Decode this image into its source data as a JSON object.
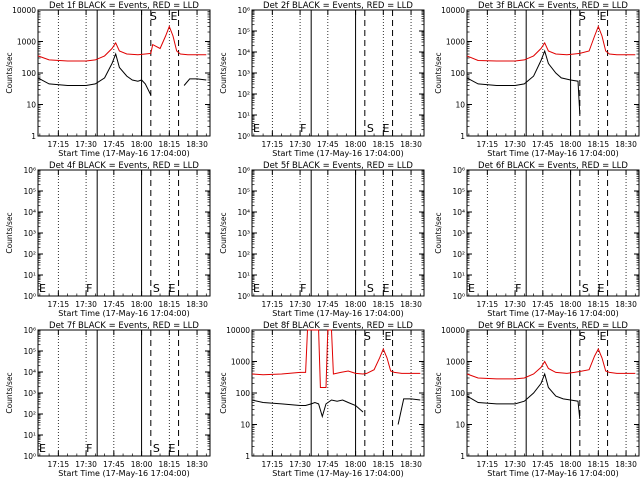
{
  "figure": {
    "xlabel": "Start Time (17-May-16 17:04:00)",
    "ylabel": "Counts/sec",
    "x_tick_labels": [
      "17:15",
      "17:30",
      "17:45",
      "18:00",
      "18:15",
      "18:30"
    ],
    "colors": {
      "events": "#000000",
      "lld": "#e00000"
    }
  },
  "chart_data": [
    {
      "type": "line",
      "title": "Det 1f BLACK = Events, RED = LLD",
      "yscale": "log",
      "ylim": [
        1,
        10000
      ],
      "y_tick_labels": [
        "1",
        "10",
        "100",
        "1000",
        "10000"
      ],
      "markers": [
        {
          "label": "S",
          "time": "18:05"
        },
        {
          "label": "E",
          "time": "18:20"
        }
      ],
      "series": [
        {
          "name": "BLACK = Events",
          "color": "#000000",
          "x": [
            "17:04",
            "17:10",
            "17:20",
            "17:30",
            "17:35",
            "17:40",
            "17:44",
            "17:46",
            "17:48",
            "17:52",
            "17:55",
            "17:58",
            "18:00",
            "18:02",
            "18:05"
          ],
          "values": [
            70,
            45,
            40,
            40,
            45,
            70,
            200,
            400,
            150,
            80,
            60,
            55,
            60,
            45,
            20
          ]
        },
        {
          "name": "BLACK = Events",
          "color": "#000000",
          "x": [
            "18:23",
            "18:26",
            "18:30",
            "18:35"
          ],
          "values": [
            40,
            65,
            65,
            60
          ]
        },
        {
          "name": "RED = LLD",
          "color": "#e00000",
          "x": [
            "17:04",
            "17:10",
            "17:20",
            "17:30",
            "17:35",
            "17:40",
            "17:44",
            "17:46",
            "17:48",
            "17:52",
            "17:58",
            "18:02",
            "18:05",
            "18:06",
            "18:10",
            "18:13",
            "18:15",
            "18:17",
            "18:19",
            "18:21",
            "18:25",
            "18:30",
            "18:35"
          ],
          "values": [
            350,
            260,
            240,
            240,
            260,
            350,
            600,
            900,
            500,
            400,
            380,
            400,
            420,
            800,
            600,
            1500,
            3000,
            1500,
            500,
            400,
            380,
            380,
            380
          ]
        }
      ]
    },
    {
      "type": "line",
      "title": "Det 2f BLACK = Events, RED = LLD",
      "yscale": "log",
      "ylim": [
        1,
        1000000
      ],
      "y_tick_labels": [
        "10⁰",
        "10¹",
        "10²",
        "10³",
        "10⁴",
        "10⁵",
        "10⁶"
      ],
      "markers": [
        {
          "label": "E",
          "time": "17:04"
        },
        {
          "label": "F",
          "time": "17:36"
        },
        {
          "label": "S",
          "time": "18:05"
        },
        {
          "label": "E",
          "time": "18:20"
        }
      ],
      "series": []
    },
    {
      "type": "line",
      "title": "Det 3f BLACK = Events, RED = LLD",
      "yscale": "log",
      "ylim": [
        1,
        10000
      ],
      "y_tick_labels": [
        "1",
        "10",
        "100",
        "1000",
        "10000"
      ],
      "markers": [
        {
          "label": "S",
          "time": "18:05"
        },
        {
          "label": "E",
          "time": "18:20"
        }
      ],
      "series": [
        {
          "name": "BLACK = Events",
          "color": "#000000",
          "x": [
            "17:04",
            "17:10",
            "17:20",
            "17:30",
            "17:35",
            "17:40",
            "17:44",
            "17:46",
            "17:48",
            "17:52",
            "17:55",
            "18:00",
            "18:04",
            "18:05"
          ],
          "values": [
            70,
            45,
            40,
            40,
            45,
            80,
            250,
            500,
            200,
            100,
            70,
            60,
            55,
            5
          ]
        },
        {
          "name": "RED = LLD",
          "color": "#e00000",
          "x": [
            "17:04",
            "17:10",
            "17:20",
            "17:30",
            "17:35",
            "17:40",
            "17:44",
            "17:46",
            "17:48",
            "17:52",
            "17:58",
            "18:02",
            "18:05",
            "18:10",
            "18:13",
            "18:15",
            "18:17",
            "18:19",
            "18:21",
            "18:25",
            "18:30",
            "18:35"
          ],
          "values": [
            350,
            250,
            240,
            240,
            260,
            350,
            600,
            900,
            500,
            400,
            380,
            400,
            420,
            500,
            1500,
            3000,
            1500,
            500,
            400,
            380,
            380,
            380
          ]
        }
      ]
    },
    {
      "type": "line",
      "title": "Det 4f BLACK = Events, RED = LLD",
      "yscale": "log",
      "ylim": [
        1,
        1000000
      ],
      "y_tick_labels": [
        "10⁰",
        "10¹",
        "10²",
        "10³",
        "10⁴",
        "10⁵",
        "10⁶"
      ],
      "markers": [
        {
          "label": "E",
          "time": "17:04"
        },
        {
          "label": "F",
          "time": "17:36"
        },
        {
          "label": "S",
          "time": "18:05"
        },
        {
          "label": "E",
          "time": "18:20"
        }
      ],
      "series": []
    },
    {
      "type": "line",
      "title": "Det 5f BLACK = Events, RED = LLD",
      "yscale": "log",
      "ylim": [
        1,
        1000000
      ],
      "y_tick_labels": [
        "10⁰",
        "10¹",
        "10²",
        "10³",
        "10⁴",
        "10⁵",
        "10⁶"
      ],
      "markers": [
        {
          "label": "E",
          "time": "17:04"
        },
        {
          "label": "F",
          "time": "17:36"
        },
        {
          "label": "S",
          "time": "18:05"
        },
        {
          "label": "E",
          "time": "18:20"
        }
      ],
      "series": []
    },
    {
      "type": "line",
      "title": "Det 6f BLACK = Events, RED = LLD",
      "yscale": "log",
      "ylim": [
        1,
        1000000
      ],
      "y_tick_labels": [
        "10⁰",
        "10¹",
        "10²",
        "10³",
        "10⁴",
        "10⁵",
        "10⁶"
      ],
      "markers": [
        {
          "label": "E",
          "time": "17:04"
        },
        {
          "label": "F",
          "time": "17:36"
        },
        {
          "label": "S",
          "time": "18:05"
        },
        {
          "label": "E",
          "time": "18:20"
        }
      ],
      "series": []
    },
    {
      "type": "line",
      "title": "Det 7f BLACK = Events, RED = LLD",
      "yscale": "log",
      "ylim": [
        1,
        1000000
      ],
      "y_tick_labels": [
        "10⁰",
        "10¹",
        "10²",
        "10³",
        "10⁴",
        "10⁵",
        "10⁶"
      ],
      "markers": [
        {
          "label": "E",
          "time": "17:04"
        },
        {
          "label": "F",
          "time": "17:36"
        },
        {
          "label": "S",
          "time": "18:05"
        },
        {
          "label": "E",
          "time": "18:20"
        }
      ],
      "series": []
    },
    {
      "type": "line",
      "title": "Det 8f BLACK = Events, RED = LLD",
      "yscale": "log",
      "ylim": [
        1,
        10000
      ],
      "y_tick_labels": [
        "1",
        "10",
        "100",
        "1000",
        "10000"
      ],
      "markers": [
        {
          "label": "S",
          "time": "18:05"
        },
        {
          "label": "E",
          "time": "18:20"
        }
      ],
      "series": [
        {
          "name": "BLACK = Events",
          "color": "#000000",
          "x": [
            "17:04",
            "17:10",
            "17:20",
            "17:30",
            "17:33",
            "17:36",
            "17:38",
            "17:40",
            "17:42",
            "17:44",
            "17:47",
            "17:50",
            "17:53",
            "17:56",
            "18:00",
            "18:04"
          ],
          "values": [
            60,
            50,
            45,
            40,
            40,
            45,
            50,
            45,
            18,
            45,
            60,
            55,
            60,
            50,
            40,
            25
          ]
        },
        {
          "name": "BLACK = Events",
          "color": "#000000",
          "x": [
            "18:23",
            "18:26",
            "18:30",
            "18:35"
          ],
          "values": [
            10,
            65,
            65,
            60
          ]
        },
        {
          "name": "RED = LLD",
          "color": "#e00000",
          "x": [
            "17:04",
            "17:10",
            "17:20",
            "17:30",
            "17:33",
            "17:34",
            "17:40",
            "17:41",
            "17:44",
            "17:45",
            "17:47",
            "17:48",
            "17:52",
            "17:56",
            "18:00",
            "18:04",
            "18:06",
            "18:10",
            "18:13",
            "18:15",
            "18:17",
            "18:19",
            "18:21",
            "18:25",
            "18:30",
            "18:35"
          ],
          "values": [
            400,
            380,
            400,
            450,
            450,
            10000,
            10000,
            150,
            150,
            10000,
            10000,
            400,
            450,
            500,
            420,
            400,
            420,
            550,
            1300,
            2500,
            1300,
            500,
            450,
            420,
            420,
            420
          ]
        }
      ]
    },
    {
      "type": "line",
      "title": "Det 9f BLACK = Events, RED = LLD",
      "yscale": "log",
      "ylim": [
        1,
        10000
      ],
      "y_tick_labels": [
        "1",
        "10",
        "100",
        "1000",
        "10000"
      ],
      "markers": [
        {
          "label": "S",
          "time": "18:05"
        },
        {
          "label": "E",
          "time": "18:20"
        }
      ],
      "series": [
        {
          "name": "BLACK = Events",
          "color": "#000000",
          "x": [
            "17:04",
            "17:10",
            "17:20",
            "17:30",
            "17:35",
            "17:40",
            "17:44",
            "17:46",
            "17:48",
            "17:52",
            "17:56",
            "18:00",
            "18:04",
            "18:05"
          ],
          "values": [
            80,
            50,
            45,
            45,
            55,
            100,
            200,
            400,
            150,
            80,
            65,
            60,
            55,
            15
          ]
        },
        {
          "name": "RED = LLD",
          "color": "#e00000",
          "x": [
            "17:04",
            "17:10",
            "17:20",
            "17:30",
            "17:35",
            "17:40",
            "17:44",
            "17:46",
            "17:48",
            "17:52",
            "17:58",
            "18:02",
            "18:05",
            "18:10",
            "18:13",
            "18:15",
            "18:17",
            "18:19",
            "18:21",
            "18:25",
            "18:30",
            "18:35"
          ],
          "values": [
            400,
            300,
            280,
            280,
            300,
            400,
            650,
            1000,
            600,
            450,
            420,
            450,
            480,
            550,
            1500,
            2500,
            1300,
            500,
            450,
            420,
            420,
            420
          ]
        }
      ]
    }
  ]
}
